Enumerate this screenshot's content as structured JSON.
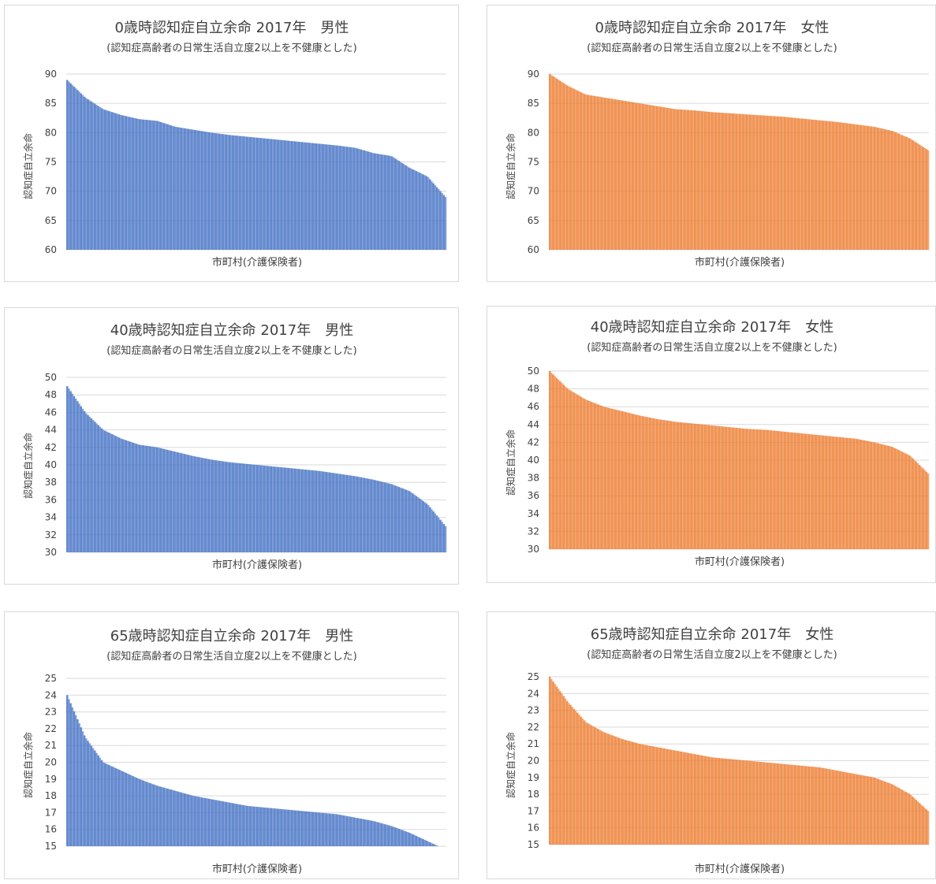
{
  "colors": {
    "male": "#4472C4",
    "female": "#ED7D31"
  },
  "charts": [
    {
      "id": "age0-male",
      "title": "0歳時認知症自立余命 2017年　男性",
      "subtitle": "(認知症高齢者の日常生活自立度2以上を不健康とした)",
      "xlabel": "市町村(介護保険者)",
      "ylabel": "認知症自立余命",
      "color_key": "male",
      "ylim": [
        60,
        90
      ],
      "yticks": [
        "60",
        "65",
        "70",
        "75",
        "80",
        "85",
        "90"
      ],
      "chart_data": {
        "type": "bar",
        "sorted": "descending",
        "series": [
          {
            "values": [
              89.0,
              86.0,
              84.0,
              83.0,
              82.3,
              82.0,
              81.0,
              80.5,
              80.0,
              79.6,
              79.3,
              79.0,
              78.7,
              78.4,
              78.1,
              77.8,
              77.4,
              76.5,
              76.0,
              74.0,
              72.5,
              69.0
            ]
          }
        ]
      }
    },
    {
      "id": "age0-female",
      "title": "0歳時認知症自立余命 2017年　女性",
      "subtitle": "(認知症高齢者の日常生活自立度2以上を不健康とした)",
      "xlabel": "市町村(介護保険者)",
      "ylabel": "認知症自立余命",
      "color_key": "female",
      "ylim": [
        60,
        90
      ],
      "yticks": [
        "60",
        "65",
        "70",
        "75",
        "80",
        "85",
        "90"
      ],
      "chart_data": {
        "type": "bar",
        "sorted": "descending",
        "series": [
          {
            "values": [
              90.0,
              88.0,
              86.5,
              86.0,
              85.5,
              85.0,
              84.5,
              84.0,
              83.8,
              83.5,
              83.3,
              83.1,
              82.9,
              82.7,
              82.4,
              82.1,
              81.8,
              81.4,
              81.0,
              80.3,
              79.0,
              77.0
            ]
          }
        ]
      }
    },
    {
      "id": "age40-male",
      "title": "40歳時認知症自立余命 2017年　男性",
      "subtitle": "(認知症高齢者の日常生活自立度2以上を不健康とした)",
      "xlabel": "市町村(介護保険者)",
      "ylabel": "認知症自立余命",
      "color_key": "male",
      "ylim": [
        30,
        50
      ],
      "yticks": [
        "30",
        "32",
        "34",
        "36",
        "38",
        "40",
        "42",
        "44",
        "46",
        "48",
        "50"
      ],
      "chart_data": {
        "type": "bar",
        "sorted": "descending",
        "series": [
          {
            "values": [
              49.0,
              46.0,
              44.0,
              43.0,
              42.3,
              42.0,
              41.5,
              41.0,
              40.6,
              40.3,
              40.1,
              39.9,
              39.7,
              39.5,
              39.3,
              39.0,
              38.7,
              38.3,
              37.8,
              37.0,
              35.5,
              33.0
            ]
          }
        ]
      }
    },
    {
      "id": "age40-female",
      "title": "40歳時認知症自立余命 2017年　女性",
      "subtitle": "(認知症高齢者の日常生活自立度2以上を不健康とした)",
      "xlabel": "市町村(介護保険者)",
      "ylabel": "認知症自立余命",
      "color_key": "female",
      "ylim": [
        30,
        50
      ],
      "yticks": [
        "30",
        "32",
        "34",
        "36",
        "38",
        "40",
        "42",
        "44",
        "46",
        "48",
        "50"
      ],
      "chart_data": {
        "type": "bar",
        "sorted": "descending",
        "series": [
          {
            "values": [
              50.0,
              48.0,
              46.8,
              46.0,
              45.5,
              45.0,
              44.6,
              44.3,
              44.1,
              43.9,
              43.7,
              43.5,
              43.4,
              43.2,
              43.0,
              42.8,
              42.6,
              42.4,
              42.0,
              41.5,
              40.5,
              38.5
            ]
          }
        ]
      }
    },
    {
      "id": "age65-male",
      "title": "65歳時認知症自立余命 2017年　男性",
      "subtitle": "(認知症高齢者の日常生活自立度2以上を不健康とした)",
      "xlabel": "市町村(介護保険者)",
      "ylabel": "認知症自立余命",
      "color_key": "male",
      "ylim": [
        15,
        25
      ],
      "yticks": [
        "15",
        "16",
        "17",
        "18",
        "19",
        "20",
        "21",
        "22",
        "23",
        "24",
        "25"
      ],
      "chart_data": {
        "type": "bar",
        "sorted": "descending",
        "series": [
          {
            "values": [
              24.0,
              21.5,
              20.0,
              19.5,
              19.0,
              18.6,
              18.3,
              18.0,
              17.8,
              17.6,
              17.4,
              17.3,
              17.2,
              17.1,
              17.0,
              16.9,
              16.7,
              16.5,
              16.2,
              15.8,
              15.3,
              14.8
            ]
          }
        ]
      }
    },
    {
      "id": "age65-female",
      "title": "65歳時認知症自立余命 2017年　女性",
      "subtitle": "(認知症高齢者の日常生活自立度2以上を不健康とした)",
      "xlabel": "市町村(介護保険者)",
      "ylabel": "認知症自立余命",
      "color_key": "female",
      "ylim": [
        15,
        25
      ],
      "yticks": [
        "15",
        "16",
        "17",
        "18",
        "19",
        "20",
        "21",
        "22",
        "23",
        "24",
        "25"
      ],
      "chart_data": {
        "type": "bar",
        "sorted": "descending",
        "series": [
          {
            "values": [
              25.0,
              23.5,
              22.3,
              21.7,
              21.3,
              21.0,
              20.8,
              20.6,
              20.4,
              20.2,
              20.1,
              20.0,
              19.9,
              19.8,
              19.7,
              19.6,
              19.4,
              19.2,
              19.0,
              18.6,
              18.0,
              17.0
            ]
          }
        ]
      }
    }
  ]
}
